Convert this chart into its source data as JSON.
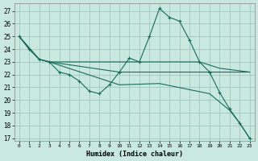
{
  "xlabel": "Humidex (Indice chaleur)",
  "xlim": [
    -0.5,
    23.5
  ],
  "ylim": [
    16.8,
    27.6
  ],
  "yticks": [
    17,
    18,
    19,
    20,
    21,
    22,
    23,
    24,
    25,
    26,
    27
  ],
  "xticks": [
    0,
    1,
    2,
    3,
    4,
    5,
    6,
    7,
    8,
    9,
    10,
    11,
    12,
    13,
    14,
    15,
    16,
    17,
    18,
    19,
    20,
    21,
    22,
    23
  ],
  "bg_color": "#c8e8e0",
  "grid_color": "#98c0b8",
  "line_color": "#1a6b5a",
  "s1_x": [
    0,
    1,
    2,
    3,
    4,
    5,
    6,
    7,
    8,
    9,
    10,
    11,
    12,
    13,
    14,
    15,
    16,
    17,
    18,
    19,
    20,
    21,
    22,
    23
  ],
  "s1_y": [
    25.0,
    24.0,
    23.2,
    23.0,
    22.2,
    22.0,
    21.5,
    20.7,
    20.5,
    21.2,
    22.2,
    23.3,
    23.0,
    25.0,
    27.2,
    26.5,
    26.2,
    24.7,
    23.0,
    22.2,
    20.6,
    19.3,
    18.2,
    17.0
  ],
  "s2_x": [
    0,
    2,
    3,
    10,
    18,
    20,
    23
  ],
  "s2_y": [
    25.0,
    23.2,
    23.0,
    23.0,
    23.0,
    22.5,
    22.2
  ],
  "s3_x": [
    0,
    2,
    3,
    10,
    18,
    20,
    23
  ],
  "s3_y": [
    25.0,
    23.2,
    23.0,
    22.2,
    22.2,
    22.2,
    22.2
  ],
  "s4_x": [
    0,
    1,
    2,
    3,
    10,
    14,
    19,
    21,
    22,
    23
  ],
  "s4_y": [
    25.0,
    24.0,
    23.2,
    23.0,
    21.2,
    21.3,
    20.5,
    19.2,
    18.2,
    17.0
  ]
}
